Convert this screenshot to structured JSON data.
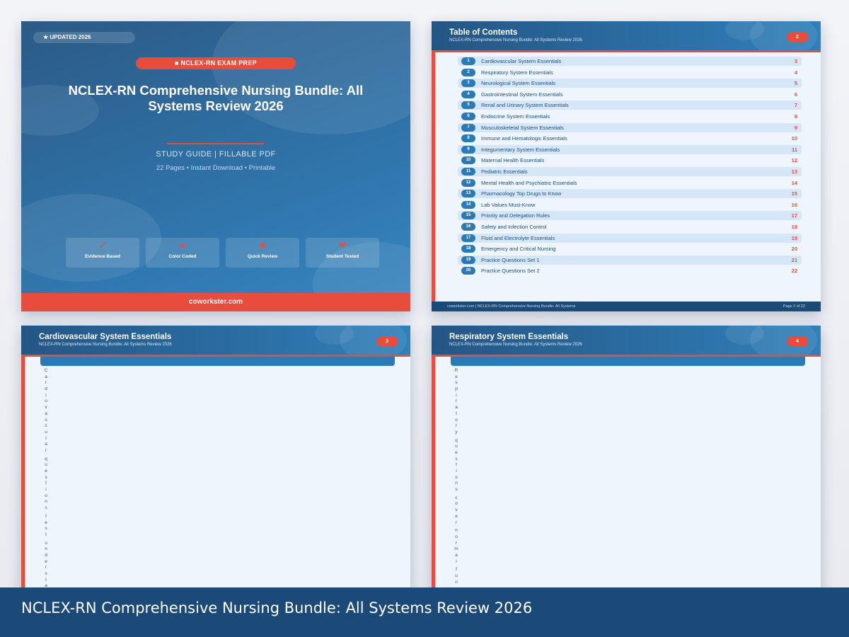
{
  "cover": {
    "badge": "★ UPDATED 2026",
    "category": "■  NCLEX-RN EXAM PREP",
    "title": "NCLEX-RN Comprehensive Nursing Bundle: All Systems Review 2026",
    "subtitle": "STUDY GUIDE  |  FILLABLE PDF",
    "meta": "22 Pages  •  Instant Download  •  Printable",
    "features": [
      {
        "icon": "check-icon",
        "glyph": "✓",
        "label": "Evidence Based"
      },
      {
        "icon": "star-icon",
        "glyph": "★",
        "label": "Color Coded"
      },
      {
        "icon": "square-icon",
        "glyph": "■",
        "label": "Quick Review"
      },
      {
        "icon": "heart-icon",
        "glyph": "❤",
        "label": "Student Tested"
      }
    ],
    "footer": "coworkster.com"
  },
  "toc": {
    "title": "Table of Contents",
    "subtitle": "NCLEX-RN Comprehensive Nursing Bundle: All Systems Review 2026",
    "page_badge": "2",
    "items": [
      {
        "n": "1",
        "label": "Cardiovascular System Essentials",
        "page": "3"
      },
      {
        "n": "2",
        "label": "Respiratory System Essentials",
        "page": "4"
      },
      {
        "n": "3",
        "label": "Neurological System Essentials",
        "page": "5"
      },
      {
        "n": "4",
        "label": "Gastrointestinal System Essentials",
        "page": "6"
      },
      {
        "n": "5",
        "label": "Renal and Urinary System Essentials",
        "page": "7"
      },
      {
        "n": "6",
        "label": "Endocrine System Essentials",
        "page": "8"
      },
      {
        "n": "7",
        "label": "Musculoskeletal System Essentials",
        "page": "9"
      },
      {
        "n": "8",
        "label": "Immune and Hematologic Essentials",
        "page": "10"
      },
      {
        "n": "9",
        "label": "Integumentary System Essentials",
        "page": "11"
      },
      {
        "n": "10",
        "label": "Maternal Health Essentials",
        "page": "12"
      },
      {
        "n": "11",
        "label": "Pediatric Essentials",
        "page": "13"
      },
      {
        "n": "12",
        "label": "Mental Health and Psychiatric Essentials",
        "page": "14"
      },
      {
        "n": "13",
        "label": "Pharmacology Top Drugs to Know",
        "page": "15"
      },
      {
        "n": "14",
        "label": "Lab Values Must-Know",
        "page": "16"
      },
      {
        "n": "15",
        "label": "Priority and Delegation Rules",
        "page": "17"
      },
      {
        "n": "16",
        "label": "Safety and Infection Control",
        "page": "18"
      },
      {
        "n": "17",
        "label": "Fluid and Electrolyte Essentials",
        "page": "19"
      },
      {
        "n": "18",
        "label": "Emergency and Critical Nursing",
        "page": "20"
      },
      {
        "n": "19",
        "label": "Practice Questions Set 1",
        "page": "21"
      },
      {
        "n": "20",
        "label": "Practice Questions Set 2",
        "page": "22"
      }
    ],
    "footer_left": "coworkster.com  |  NCLEX-RN Comprehensive Nursing Bundle: All Systems",
    "footer_right": "Page 2 of 22"
  },
  "page3": {
    "title": "Cardiovascular System Essentials",
    "subtitle": "NCLEX-RN Comprehensive Nursing Bundle: All Systems Review 2026",
    "page_badge": "3",
    "body_text": "Cardiovascular questions test understa"
  },
  "page4": {
    "title": "Respiratory System Essentials",
    "subtitle": "NCLEX-RN Comprehensive Nursing Bundle: All Systems Review 2026",
    "page_badge": "4",
    "body_text": "Respiratory questions cover normal fun"
  },
  "banner": {
    "title": "NCLEX-RN Comprehensive Nursing Bundle: All Systems Review 2026"
  },
  "colors": {
    "primary": "#2a7ab8",
    "accent": "#e74c3c",
    "dark": "#1b4a79"
  }
}
